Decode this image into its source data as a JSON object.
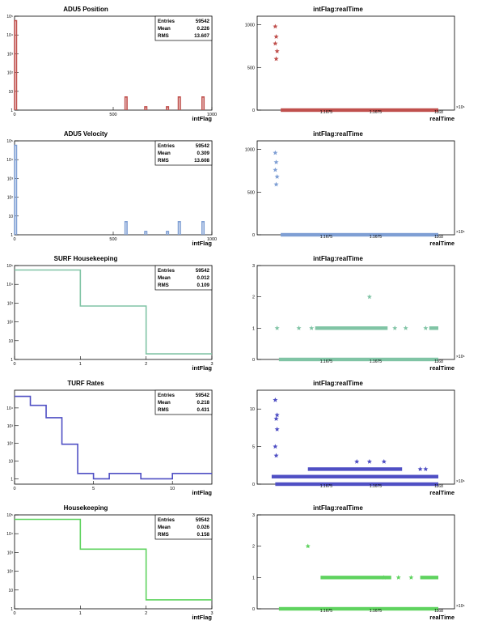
{
  "chart_data": [
    {
      "type": "histogram",
      "title": "ADU5 Position",
      "xlabel": "intFlag",
      "xlim": [
        0,
        1000
      ],
      "ylim": [
        1,
        100000
      ],
      "yscale": "log",
      "xticks": [
        0,
        500,
        1000
      ],
      "yticks": [
        "1",
        "10",
        "10²",
        "10³",
        "10⁴",
        "10⁵"
      ],
      "color": "#c0504d",
      "stats": {
        "Entries": "59542",
        "Mean": "0.226",
        "RMS": "13.607"
      },
      "bars": [
        {
          "x0": 0,
          "x1": 10,
          "value": 58000
        },
        {
          "x0": 560,
          "x1": 570,
          "value": 5
        },
        {
          "x0": 660,
          "x1": 670,
          "value": 1.5
        },
        {
          "x0": 770,
          "x1": 780,
          "value": 1.5
        },
        {
          "x0": 830,
          "x1": 840,
          "value": 5
        },
        {
          "x0": 950,
          "x1": 960,
          "value": 5
        }
      ]
    },
    {
      "type": "scatter",
      "title": "intFlag:realTime",
      "xlabel": "realTime",
      "ylim": [
        0,
        1100
      ],
      "yticks": [
        0,
        500,
        1000
      ],
      "xticks": [
        "1.1675",
        "1.1675",
        "1168"
      ],
      "exponent": "×10⁶",
      "color": "#c0504d",
      "outliers": [
        {
          "x": 0.1,
          "y": 980
        },
        {
          "x": 0.105,
          "y": 860
        },
        {
          "x": 0.1,
          "y": 780
        },
        {
          "x": 0.11,
          "y": 690
        },
        {
          "x": 0.105,
          "y": 600
        }
      ],
      "bands": [
        {
          "y": 0,
          "x0": 0.13,
          "x1": 1.0
        }
      ]
    },
    {
      "type": "histogram",
      "title": "ADU5 Velocity",
      "xlabel": "intFlag",
      "xlim": [
        0,
        1000
      ],
      "ylim": [
        1,
        100000
      ],
      "yscale": "log",
      "xticks": [
        0,
        500,
        1000
      ],
      "yticks": [
        "1",
        "10",
        "10²",
        "10³",
        "10⁴",
        "10⁵"
      ],
      "color": "#7f9fd4",
      "stats": {
        "Entries": "59542",
        "Mean": "0.309",
        "RMS": "13.608"
      },
      "bars": [
        {
          "x0": 0,
          "x1": 10,
          "value": 58000
        },
        {
          "x0": 560,
          "x1": 570,
          "value": 5
        },
        {
          "x0": 660,
          "x1": 670,
          "value": 1.5
        },
        {
          "x0": 770,
          "x1": 780,
          "value": 1.5
        },
        {
          "x0": 830,
          "x1": 840,
          "value": 5
        },
        {
          "x0": 950,
          "x1": 960,
          "value": 5
        }
      ]
    },
    {
      "type": "scatter",
      "title": "intFlag:realTime",
      "xlabel": "realTime",
      "ylim": [
        0,
        1100
      ],
      "yticks": [
        0,
        500,
        1000
      ],
      "xticks": [
        "1.1675",
        "1.1675",
        "1168"
      ],
      "exponent": "×10⁶",
      "color": "#7f9fd4",
      "outliers": [
        {
          "x": 0.1,
          "y": 960
        },
        {
          "x": 0.105,
          "y": 850
        },
        {
          "x": 0.1,
          "y": 760
        },
        {
          "x": 0.11,
          "y": 680
        },
        {
          "x": 0.105,
          "y": 590
        }
      ],
      "bands": [
        {
          "y": 0,
          "x0": 0.13,
          "x1": 1.0
        }
      ]
    },
    {
      "type": "histogram",
      "title": "SURF Housekeeping",
      "xlabel": "intFlag",
      "xlim": [
        0,
        3
      ],
      "ylim": [
        1,
        100000
      ],
      "yscale": "log",
      "xticks": [
        0,
        1,
        2,
        3
      ],
      "yticks": [
        "1",
        "10",
        "10²",
        "10³",
        "10⁴",
        "10⁵"
      ],
      "color": "#80c4a5",
      "stats": {
        "Entries": "59542",
        "Mean": "0.012",
        "RMS": "0.109"
      },
      "bins": {
        "edges": [
          0,
          1,
          2,
          3
        ],
        "values": [
          58000,
          700,
          2
        ]
      }
    },
    {
      "type": "scatter",
      "title": "intFlag:realTime",
      "xlabel": "realTime",
      "ylim": [
        0,
        3
      ],
      "yticks": [
        0,
        1,
        2,
        3
      ],
      "xticks": [
        "1.1675",
        "1.1675",
        "1168"
      ],
      "exponent": "×10⁶",
      "color": "#80c4a5",
      "outliers": [
        {
          "x": 0.11,
          "y": 1
        },
        {
          "x": 0.23,
          "y": 1
        },
        {
          "x": 0.3,
          "y": 1
        },
        {
          "x": 0.62,
          "y": 2
        },
        {
          "x": 0.76,
          "y": 1
        },
        {
          "x": 0.82,
          "y": 1
        },
        {
          "x": 0.93,
          "y": 1
        }
      ],
      "bands": [
        {
          "y": 0,
          "x0": 0.12,
          "x1": 1.0
        },
        {
          "y": 1,
          "x0": 0.32,
          "x1": 0.72
        },
        {
          "y": 1,
          "x0": 0.95,
          "x1": 1.0
        }
      ]
    },
    {
      "type": "histogram",
      "title": "TURF Rates",
      "xlabel": "intFlag",
      "xlim": [
        0,
        12.5
      ],
      "ylim": [
        0.5,
        100000
      ],
      "yscale": "log",
      "xticks": [
        0,
        5,
        10
      ],
      "yticks": [
        "1",
        "10",
        "10²",
        "10³",
        "10⁴"
      ],
      "color": "#4f4fc4",
      "stats": {
        "Entries": "59542",
        "Mean": "0.218",
        "RMS": "0.431"
      },
      "bins": {
        "edges": [
          0,
          1,
          2,
          3,
          4,
          5,
          6,
          8,
          10,
          12.5
        ],
        "values": [
          45000,
          14000,
          2800,
          90,
          2,
          1,
          2,
          1,
          2
        ]
      }
    },
    {
      "type": "scatter",
      "title": "intFlag:realTime",
      "xlabel": "realTime",
      "ylim": [
        0,
        12.5
      ],
      "yticks": [
        0,
        5,
        10
      ],
      "xticks": [
        "1.1675",
        "1.1675",
        "1168"
      ],
      "exponent": "×10⁶",
      "color": "#4f4fc4",
      "outliers": [
        {
          "x": 0.1,
          "y": 11.2
        },
        {
          "x": 0.11,
          "y": 9.2
        },
        {
          "x": 0.105,
          "y": 8.7
        },
        {
          "x": 0.11,
          "y": 7.3
        },
        {
          "x": 0.1,
          "y": 5
        },
        {
          "x": 0.105,
          "y": 3.8
        },
        {
          "x": 0.55,
          "y": 3
        },
        {
          "x": 0.62,
          "y": 3
        },
        {
          "x": 0.7,
          "y": 3
        },
        {
          "x": 0.9,
          "y": 2
        },
        {
          "x": 0.93,
          "y": 2
        }
      ],
      "bands": [
        {
          "y": 0,
          "x0": 0.1,
          "x1": 1.0
        },
        {
          "y": 1,
          "x0": 0.08,
          "x1": 1.0
        },
        {
          "y": 2,
          "x0": 0.28,
          "x1": 0.8
        }
      ]
    },
    {
      "type": "histogram",
      "title": "Housekeeping",
      "xlabel": "intFlag",
      "xlim": [
        0,
        3
      ],
      "ylim": [
        1,
        100000
      ],
      "yscale": "log",
      "xticks": [
        0,
        1,
        2,
        3
      ],
      "yticks": [
        "1",
        "10",
        "10²",
        "10³",
        "10⁴",
        "10⁵"
      ],
      "color": "#5fd35f",
      "stats": {
        "Entries": "59542",
        "Mean": "0.026",
        "RMS": "0.158"
      },
      "bins": {
        "edges": [
          0,
          1,
          2,
          3
        ],
        "values": [
          58000,
          1500,
          3
        ]
      }
    },
    {
      "type": "scatter",
      "title": "intFlag:realTime",
      "xlabel": "realTime",
      "ylim": [
        0,
        3
      ],
      "yticks": [
        0,
        1,
        2,
        3
      ],
      "xticks": [
        "1.1675",
        "1.1675",
        "1168"
      ],
      "exponent": "×10⁶",
      "color": "#5fd35f",
      "outliers": [
        {
          "x": 0.28,
          "y": 2
        },
        {
          "x": 0.7,
          "y": 1
        },
        {
          "x": 0.78,
          "y": 1
        },
        {
          "x": 0.85,
          "y": 1
        }
      ],
      "bands": [
        {
          "y": 0,
          "x0": 0.12,
          "x1": 1.0
        },
        {
          "y": 1,
          "x0": 0.35,
          "x1": 0.74
        },
        {
          "y": 1,
          "x0": 0.9,
          "x1": 1.0
        }
      ]
    }
  ]
}
